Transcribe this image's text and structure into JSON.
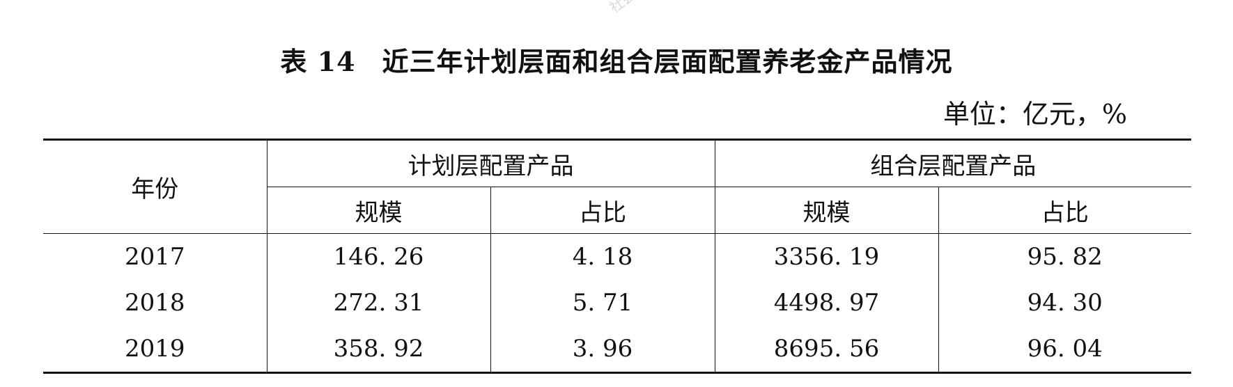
{
  "watermark": "社会",
  "title": {
    "number": "表 14",
    "text": "近三年计划层面和组合层面配置养老金产品情况"
  },
  "unit": "单位：亿元，%",
  "table": {
    "year_header": "年份",
    "groups": [
      "计划层配置产品",
      "组合层配置产品"
    ],
    "subheaders": [
      "规模",
      "占比",
      "规模",
      "占比"
    ],
    "rows": [
      {
        "year": "2017",
        "cells": [
          "146. 26",
          "4. 18",
          "3356. 19",
          "95. 82"
        ]
      },
      {
        "year": "2018",
        "cells": [
          "272. 31",
          "5. 71",
          "4498. 97",
          "94. 30"
        ]
      },
      {
        "year": "2019",
        "cells": [
          "358. 92",
          "3. 96",
          "8695. 56",
          "96. 04"
        ]
      }
    ]
  }
}
